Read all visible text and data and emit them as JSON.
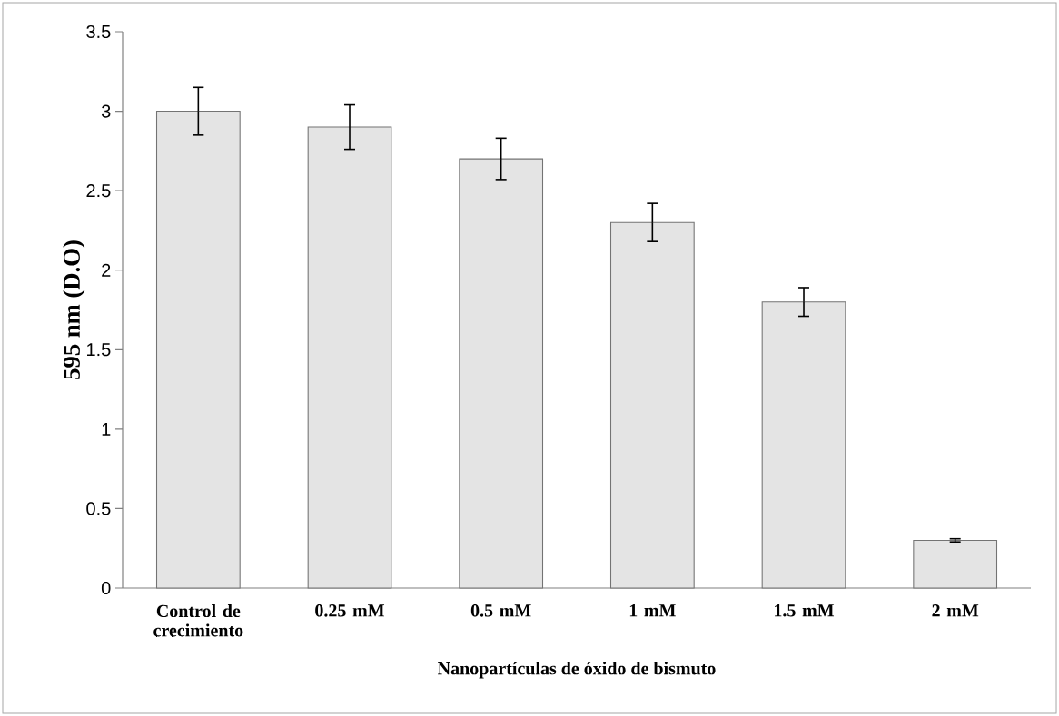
{
  "chart_data": {
    "type": "bar",
    "xlabel": "Nanopartículas de óxido de bismuto",
    "ylabel": "595 nm (D.O)",
    "categories": [
      "Control de crecimiento",
      "0.25 mM",
      "0.5 mM",
      "1 mM",
      "1.5 mM",
      "2 mM"
    ],
    "values": [
      3.0,
      2.9,
      2.7,
      2.3,
      1.8,
      0.3
    ],
    "errors": [
      0.15,
      0.14,
      0.13,
      0.12,
      0.09,
      0.01
    ],
    "color": "#e4e4e4",
    "ylim": [
      0,
      3.5
    ],
    "yticks": [
      0,
      0.5,
      1,
      1.5,
      2,
      2.5,
      3,
      3.5
    ],
    "grid": false
  }
}
